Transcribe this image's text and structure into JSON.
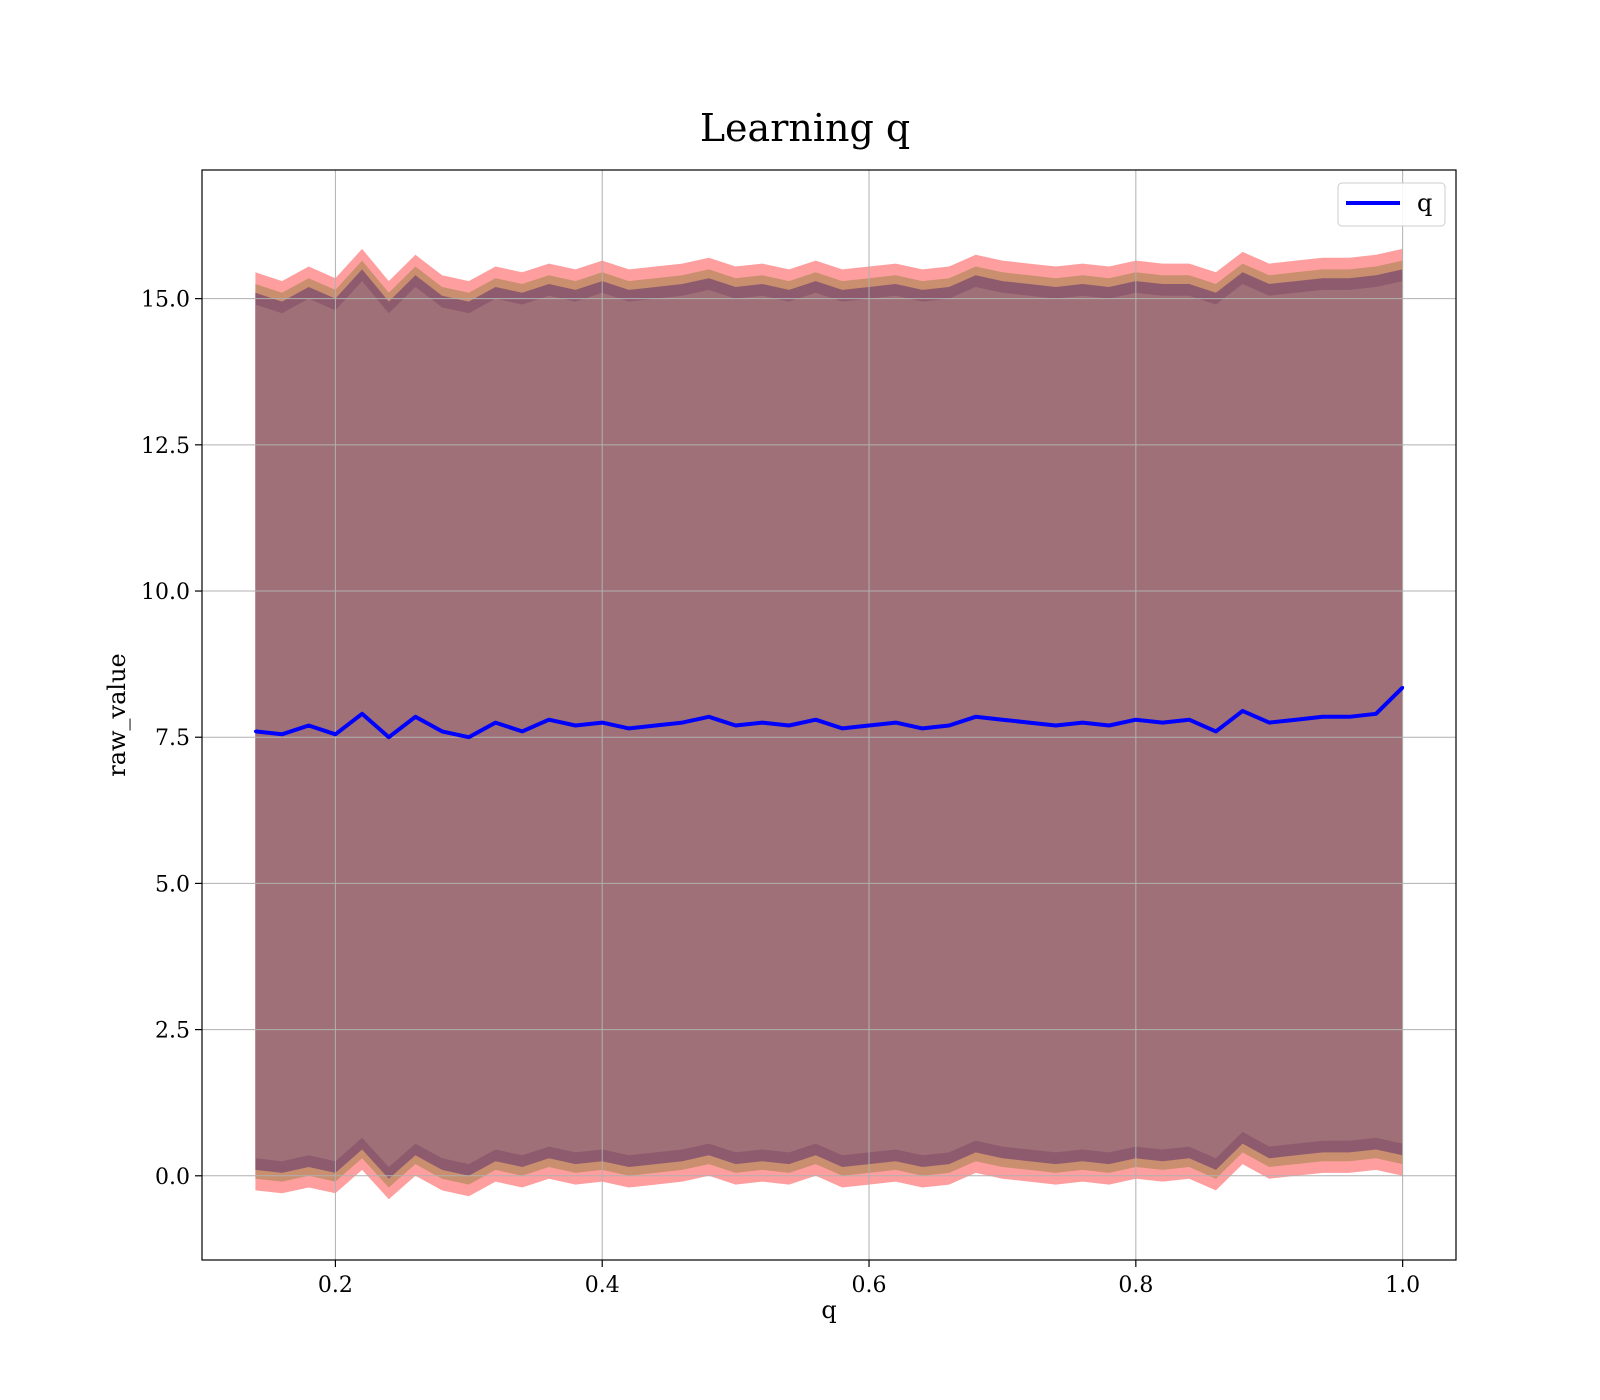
{
  "chart_data": {
    "type": "line",
    "title": "Learning q",
    "xlabel": "q",
    "ylabel": "raw_value",
    "xlim": [
      0.1,
      1.04
    ],
    "ylim": [
      -1.44,
      17.2
    ],
    "xticks": [
      0.2,
      0.4,
      0.6,
      0.8,
      1.0
    ],
    "xtick_labels": [
      "0.2",
      "0.4",
      "0.6",
      "0.8",
      "1.0"
    ],
    "yticks": [
      0.0,
      2.5,
      5.0,
      7.5,
      10.0,
      12.5,
      15.0
    ],
    "ytick_labels": [
      "0.0",
      "2.5",
      "5.0",
      "7.5",
      "10.0",
      "12.5",
      "15.0"
    ],
    "grid": true,
    "legend": {
      "placement": "top-right",
      "entries": [
        "q"
      ]
    },
    "colors": {
      "line": "#0000ff",
      "band_outer": "#ff9e9e",
      "band_mid": "#c98f6e",
      "band_inner": "#8e5a6e",
      "band_core": "#a07078",
      "grid": "#b0b0b0"
    },
    "series": [
      {
        "name": "q",
        "x": [
          0.14,
          0.16,
          0.18,
          0.2,
          0.22,
          0.24,
          0.26,
          0.28,
          0.3,
          0.32,
          0.34,
          0.36,
          0.38,
          0.4,
          0.42,
          0.44,
          0.46,
          0.48,
          0.5,
          0.52,
          0.54,
          0.56,
          0.58,
          0.6,
          0.62,
          0.64,
          0.66,
          0.68,
          0.7,
          0.72,
          0.74,
          0.76,
          0.78,
          0.8,
          0.82,
          0.84,
          0.86,
          0.88,
          0.9,
          0.92,
          0.94,
          0.96,
          0.98,
          1.0
        ],
        "y": [
          7.6,
          7.55,
          7.7,
          7.55,
          7.9,
          7.5,
          7.85,
          7.6,
          7.5,
          7.75,
          7.6,
          7.8,
          7.7,
          7.75,
          7.65,
          7.7,
          7.75,
          7.85,
          7.7,
          7.75,
          7.7,
          7.8,
          7.65,
          7.7,
          7.75,
          7.65,
          7.7,
          7.85,
          7.8,
          7.75,
          7.7,
          7.75,
          7.7,
          7.8,
          7.75,
          7.8,
          7.6,
          7.95,
          7.75,
          7.8,
          7.85,
          7.85,
          7.9,
          8.35
        ]
      }
    ],
    "band": {
      "upper": [
        15.45,
        15.3,
        15.55,
        15.35,
        15.85,
        15.3,
        15.75,
        15.4,
        15.3,
        15.55,
        15.45,
        15.6,
        15.5,
        15.65,
        15.5,
        15.55,
        15.6,
        15.7,
        15.55,
        15.6,
        15.5,
        15.65,
        15.5,
        15.55,
        15.6,
        15.5,
        15.55,
        15.75,
        15.65,
        15.6,
        15.55,
        15.6,
        15.55,
        15.65,
        15.6,
        15.6,
        15.45,
        15.8,
        15.6,
        15.65,
        15.7,
        15.7,
        15.75,
        15.85
      ],
      "lower": [
        -0.25,
        -0.3,
        -0.2,
        -0.3,
        0.1,
        -0.4,
        0.0,
        -0.25,
        -0.35,
        -0.1,
        -0.2,
        -0.05,
        -0.15,
        -0.1,
        -0.2,
        -0.15,
        -0.1,
        0.0,
        -0.15,
        -0.1,
        -0.15,
        0.0,
        -0.2,
        -0.15,
        -0.1,
        -0.2,
        -0.15,
        0.05,
        -0.05,
        -0.1,
        -0.15,
        -0.1,
        -0.15,
        -0.05,
        -0.1,
        -0.05,
        -0.25,
        0.2,
        -0.05,
        0.0,
        0.05,
        0.05,
        0.1,
        0.0
      ]
    }
  }
}
